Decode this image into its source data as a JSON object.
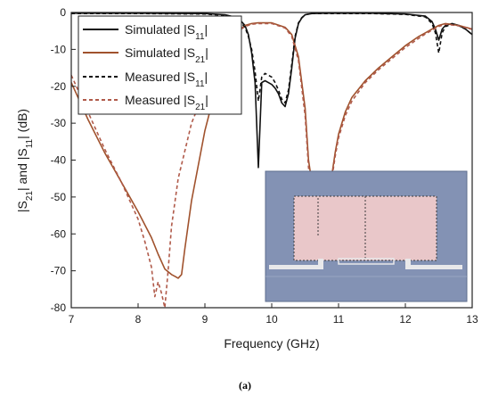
{
  "chart_data": {
    "type": "line",
    "xlabel": "Frequency (GHz)",
    "ylabel": "|S21| and |S11| (dB)",
    "xlim": [
      7,
      13
    ],
    "ylim": [
      -80,
      0
    ],
    "xticks": [
      7,
      8,
      9,
      10,
      11,
      12,
      13
    ],
    "yticks": [
      0,
      -10,
      -20,
      -30,
      -40,
      -50,
      -60,
      -70,
      -80
    ],
    "legend_position": "top-left",
    "caption": "(a)",
    "inset": "photo of fabricated filter",
    "series": [
      {
        "name": "Simulated |S11|",
        "style": "solid",
        "color": "#111111",
        "x": [
          7.0,
          8.0,
          9.0,
          9.3,
          9.5,
          9.6,
          9.65,
          9.7,
          9.75,
          9.8,
          9.85,
          9.9,
          9.95,
          10.0,
          10.05,
          10.1,
          10.15,
          10.2,
          10.25,
          10.3,
          10.35,
          10.4,
          10.45,
          10.5,
          10.6,
          10.8,
          11.0,
          11.5,
          12.0,
          12.3,
          12.4,
          12.45,
          12.5,
          12.55,
          12.6,
          12.7,
          12.8,
          12.9,
          13.0
        ],
        "y": [
          -0.2,
          -0.2,
          -0.3,
          -0.6,
          -1.5,
          -3.5,
          -6.0,
          -11.0,
          -19.0,
          -42.0,
          -19.0,
          -18.5,
          -19.0,
          -19.5,
          -20.5,
          -22.0,
          -24.5,
          -25.5,
          -22.0,
          -15.0,
          -7.0,
          -3.0,
          -1.5,
          -0.6,
          -0.3,
          -0.2,
          -0.2,
          -0.2,
          -0.4,
          -1.0,
          -2.5,
          -4.5,
          -7.5,
          -4.5,
          -3.5,
          -3.0,
          -3.5,
          -4.5,
          -6.0
        ]
      },
      {
        "name": "Simulated |S21|",
        "style": "solid",
        "color": "#a0522d",
        "x": [
          7.0,
          7.25,
          7.5,
          7.75,
          8.0,
          8.2,
          8.3,
          8.4,
          8.5,
          8.55,
          8.6,
          8.65,
          8.7,
          8.8,
          9.0,
          9.2,
          9.4,
          9.5,
          9.6,
          9.7,
          9.8,
          10.0,
          10.2,
          10.3,
          10.4,
          10.5,
          10.55,
          10.6,
          10.65,
          10.7,
          10.75,
          10.8,
          10.85,
          10.9,
          10.95,
          11.0,
          11.1,
          11.2,
          11.4,
          11.6,
          11.8,
          12.0,
          12.2,
          12.3,
          12.4,
          12.5,
          12.6,
          12.8,
          13.0
        ],
        "y": [
          -19.0,
          -29.0,
          -38.0,
          -46.0,
          -54.0,
          -61.0,
          -65.5,
          -69.5,
          -71.0,
          -71.5,
          -72.0,
          -71.0,
          -64.0,
          -51.0,
          -32.0,
          -18.0,
          -8.0,
          -5.0,
          -3.5,
          -3.0,
          -2.8,
          -2.8,
          -4.0,
          -6.0,
          -12.0,
          -26.0,
          -40.0,
          -46.0,
          -44.0,
          -56.0,
          -70.0,
          -63.0,
          -50.0,
          -44.0,
          -38.0,
          -33.0,
          -27.0,
          -23.0,
          -18.5,
          -15.0,
          -12.0,
          -9.0,
          -6.5,
          -5.5,
          -4.5,
          -3.5,
          -3.0,
          -3.5,
          -4.5
        ]
      },
      {
        "name": "Measured |S11|",
        "style": "dashed",
        "color": "#111111",
        "x": [
          7.0,
          8.0,
          9.0,
          9.3,
          9.5,
          9.6,
          9.65,
          9.7,
          9.75,
          9.8,
          9.85,
          9.9,
          9.95,
          10.0,
          10.05,
          10.1,
          10.15,
          10.2,
          10.25,
          10.3,
          10.35,
          10.4,
          10.45,
          10.5,
          10.6,
          10.8,
          11.0,
          11.5,
          12.0,
          12.3,
          12.4,
          12.45,
          12.5,
          12.55,
          12.6,
          12.7,
          12.8,
          12.9,
          13.0
        ],
        "y": [
          -0.3,
          -0.3,
          -0.4,
          -0.8,
          -1.8,
          -4.0,
          -6.5,
          -10.0,
          -16.0,
          -24.0,
          -17.5,
          -16.5,
          -17.0,
          -17.5,
          -19.0,
          -21.0,
          -23.5,
          -24.5,
          -21.0,
          -14.0,
          -6.5,
          -2.8,
          -1.4,
          -0.6,
          -0.3,
          -0.3,
          -0.3,
          -0.3,
          -0.5,
          -1.2,
          -3.0,
          -5.5,
          -11.0,
          -5.5,
          -3.8,
          -3.2,
          -3.6,
          -4.5,
          -6.0
        ]
      },
      {
        "name": "Measured |S21|",
        "style": "dashed",
        "color": "#b05a4a",
        "x": [
          7.0,
          7.25,
          7.5,
          7.75,
          8.0,
          8.1,
          8.2,
          8.25,
          8.3,
          8.35,
          8.4,
          8.45,
          8.5,
          8.6,
          8.8,
          9.0,
          9.2,
          9.4,
          9.5,
          9.6,
          9.7,
          9.8,
          10.0,
          10.2,
          10.3,
          10.4,
          10.5,
          10.55,
          10.6,
          10.65,
          10.7,
          10.75,
          10.8,
          10.85,
          10.9,
          10.95,
          11.0,
          11.1,
          11.2,
          11.4,
          11.6,
          11.8,
          12.0,
          12.2,
          12.3,
          12.4,
          12.5,
          12.6,
          12.8,
          13.0
        ],
        "y": [
          -17.0,
          -27.0,
          -37.0,
          -46.0,
          -56.0,
          -62.0,
          -69.0,
          -77.0,
          -73.0,
          -76.0,
          -80.0,
          -70.0,
          -58.0,
          -45.0,
          -30.0,
          -21.0,
          -13.0,
          -7.0,
          -5.0,
          -3.8,
          -3.2,
          -3.0,
          -3.0,
          -4.2,
          -6.5,
          -13.0,
          -28.0,
          -42.0,
          -48.0,
          -45.0,
          -57.0,
          -71.0,
          -64.0,
          -51.0,
          -45.0,
          -39.0,
          -34.0,
          -28.0,
          -24.0,
          -19.0,
          -15.5,
          -12.5,
          -9.5,
          -7.0,
          -5.8,
          -4.8,
          -3.8,
          -3.2,
          -3.6,
          -4.6
        ]
      }
    ]
  }
}
